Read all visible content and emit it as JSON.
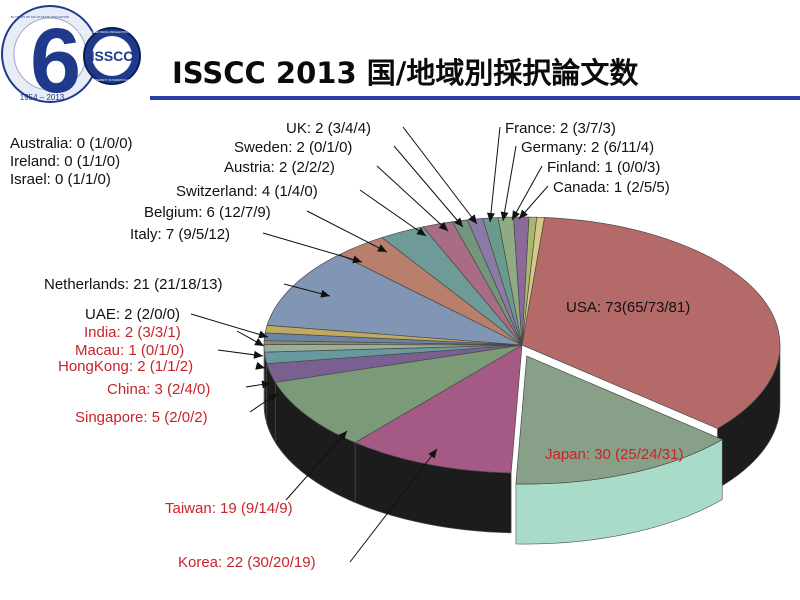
{
  "slide": {
    "title": "ISSCC 2013 国/地域別採択論文数",
    "logo": {
      "big_digit": "6",
      "badge_text": "ISSCC",
      "years": "1954 – 2013",
      "ring_text_top": "60 YEARS OF SOLID-STATE INNOVATION",
      "ring_text_right": "INSTITUTE OF ELECTRICAL AND ELECTRONICS ENGINEERS",
      "ring_text_bottom": "UNIVERSITY OF PENNSYLVANIA"
    }
  },
  "colors": {
    "title_rule": "#2a3ea8",
    "label_black": "#111111",
    "label_red": "#c8242a"
  },
  "chart_data": {
    "type": "pie",
    "style": "3d-exploded",
    "slices": [
      {
        "name": "USA",
        "value": 73,
        "label": "USA: 73(65/73/81)",
        "color": "#b56a6a",
        "side": "#1c1c1c",
        "label_color": "black"
      },
      {
        "name": "Japan",
        "value": 30,
        "label": "Japan: 30 (25/24/31)",
        "color": "#88a088",
        "side": "#a8dcc8",
        "label_color": "red",
        "exploded": true
      },
      {
        "name": "Korea",
        "value": 22,
        "label": "Korea: 22 (30/20/19)",
        "color": "#a45a84",
        "side": "#1c1c1c",
        "label_color": "red"
      },
      {
        "name": "Taiwan",
        "value": 19,
        "label": "Taiwan: 19 (9/14/9)",
        "color": "#7a9a78",
        "side": "#1c1c1c",
        "label_color": "red"
      },
      {
        "name": "Singapore",
        "value": 5,
        "label": "Singapore: 5 (2/0/2)",
        "color": "#7a6090",
        "side": "#1c1c1c",
        "label_color": "red"
      },
      {
        "name": "China",
        "value": 3,
        "label": "China: 3 (2/4/0)",
        "color": "#6a9aa0",
        "side": "#1c1c1c",
        "label_color": "red"
      },
      {
        "name": "HongKong",
        "value": 2,
        "label": "HongKong: 2 (1/1/2)",
        "color": "#98b09a",
        "side": "#1c1c1c",
        "label_color": "red"
      },
      {
        "name": "Macau",
        "value": 1,
        "label": "Macau: 1 (0/1/0)",
        "color": "#8a8a6a",
        "side": "#1c1c1c",
        "label_color": "red"
      },
      {
        "name": "India",
        "value": 2,
        "label": "India: 2 (3/3/1)",
        "color": "#6a84a6",
        "side": "#1c1c1c",
        "label_color": "red"
      },
      {
        "name": "UAE",
        "value": 2,
        "label": "UAE: 2 (2/0/0)",
        "color": "#c0aa60",
        "side": "#1c1c1c",
        "label_color": "black"
      },
      {
        "name": "Netherlands",
        "value": 21,
        "label": "Netherlands: 21 (21/18/13)",
        "color": "#8096b4",
        "side": "#1c1c1c",
        "label_color": "black"
      },
      {
        "name": "Italy",
        "value": 7,
        "label": "Italy: 7 (9/5/12)",
        "color": "#b8806c",
        "side": "#1c1c1c",
        "label_color": "black"
      },
      {
        "name": "Belgium",
        "value": 6,
        "label": "Belgium: 6 (12/7/9)",
        "color": "#6e9a98",
        "side": "#1c1c1c",
        "label_color": "black"
      },
      {
        "name": "Switzerland",
        "value": 4,
        "label": "Switzerland: 4 (1/4/0)",
        "color": "#a86c84",
        "side": "#1c1c1c",
        "label_color": "black"
      },
      {
        "name": "Austria",
        "value": 2,
        "label": "Austria: 2 (2/2/2)",
        "color": "#74967a",
        "side": "#1c1c1c",
        "label_color": "black"
      },
      {
        "name": "Sweden",
        "value": 2,
        "label": "Sweden: 2 (0/1/0)",
        "color": "#8a7aa6",
        "side": "#1c1c1c",
        "label_color": "black"
      },
      {
        "name": "UK",
        "value": 2,
        "label": "UK: 2 (3/4/4)",
        "color": "#6a9a8c",
        "side": "#1c1c1c",
        "label_color": "black"
      },
      {
        "name": "France",
        "value": 2,
        "label": "France: 2 (3/7/3)",
        "color": "#90aa86",
        "side": "#1c1c1c",
        "label_color": "black"
      },
      {
        "name": "Germany",
        "value": 2,
        "label": "Germany: 2 (6/11/4)",
        "color": "#8a6a9a",
        "side": "#1c1c1c",
        "label_color": "black"
      },
      {
        "name": "Finland",
        "value": 1,
        "label": "Finland: 1 (0/0/3)",
        "color": "#a8b870",
        "side": "#1c1c1c",
        "label_color": "black"
      },
      {
        "name": "Canada",
        "value": 1,
        "label": "Canada: 1 (2/5/5)",
        "color": "#d8c884",
        "side": "#1c1c1c",
        "label_color": "black"
      }
    ],
    "zero_entries": [
      {
        "name": "Australia",
        "value": 0,
        "label": "Australia: 0 (1/0/0)"
      },
      {
        "name": "Ireland",
        "value": 0,
        "label": "Ireland: 0 (1/1/0)"
      },
      {
        "name": "Israel",
        "value": 0,
        "label": "Israel: 0 (1/1/0)"
      }
    ]
  }
}
